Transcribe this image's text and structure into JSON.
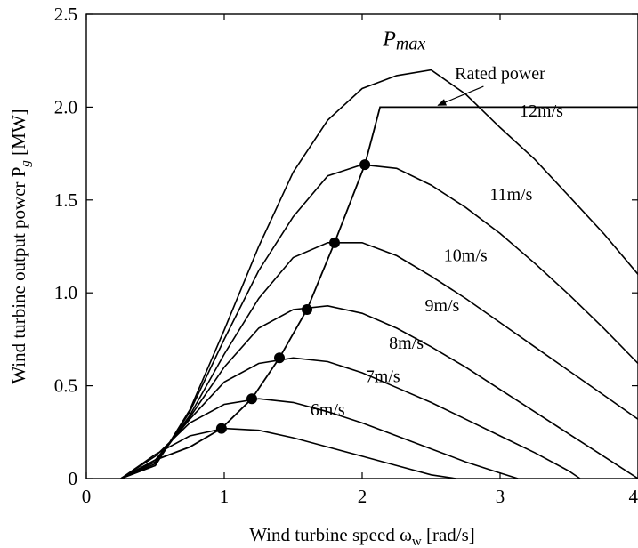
{
  "chart_data": {
    "type": "line",
    "xlabel": "Wind turbine speed ω",
    "xlabel_sub": "w",
    "xlabel_unit": " [rad/s]",
    "ylabel": "Wind turbine output power P",
    "ylabel_sub": "g",
    "ylabel_unit": " [MW]",
    "xlim": [
      0,
      4
    ],
    "ylim": [
      0,
      2.5
    ],
    "xticks": [
      "0",
      "1",
      "2",
      "3",
      "4"
    ],
    "yticks": [
      "0",
      "0.5",
      "1.0",
      "1.5",
      "2.0",
      "2.5"
    ],
    "xtick_values": [
      0,
      1,
      2,
      3,
      4
    ],
    "ytick_values": [
      0,
      0.5,
      1.0,
      1.5,
      2.0,
      2.5
    ],
    "grid": false,
    "series": [
      {
        "name": "6m/s",
        "label": "6m/s",
        "x": [
          0.25,
          0.5,
          0.75,
          1.0,
          1.25,
          1.5,
          1.75,
          2.0,
          2.25,
          2.5,
          2.68
        ],
        "y": [
          0.0,
          0.13,
          0.23,
          0.27,
          0.26,
          0.22,
          0.17,
          0.12,
          0.07,
          0.02,
          0.0
        ]
      },
      {
        "name": "7m/s",
        "label": "7m/s",
        "x": [
          0.25,
          0.5,
          0.75,
          1.0,
          1.25,
          1.5,
          1.75,
          2.0,
          2.25,
          2.5,
          2.75,
          3.0,
          3.13
        ],
        "y": [
          0.0,
          0.12,
          0.3,
          0.4,
          0.43,
          0.41,
          0.36,
          0.3,
          0.23,
          0.16,
          0.09,
          0.03,
          0.0
        ]
      },
      {
        "name": "8m/s",
        "label": "8m/s",
        "x": [
          0.25,
          0.5,
          0.75,
          1.0,
          1.25,
          1.5,
          1.75,
          2.0,
          2.25,
          2.5,
          2.75,
          3.0,
          3.25,
          3.5,
          3.58
        ],
        "y": [
          0.0,
          0.1,
          0.32,
          0.52,
          0.62,
          0.65,
          0.63,
          0.57,
          0.49,
          0.41,
          0.32,
          0.23,
          0.14,
          0.04,
          0.0
        ]
      },
      {
        "name": "9m/s",
        "label": "9m/s",
        "x": [
          0.25,
          0.5,
          0.75,
          1.0,
          1.25,
          1.5,
          1.75,
          2.0,
          2.25,
          2.5,
          2.75,
          3.0,
          3.25,
          3.5,
          3.75,
          4.0
        ],
        "y": [
          0.0,
          0.09,
          0.33,
          0.6,
          0.81,
          0.91,
          0.93,
          0.89,
          0.81,
          0.71,
          0.6,
          0.48,
          0.36,
          0.24,
          0.12,
          0.0
        ]
      },
      {
        "name": "10m/s",
        "label": "10m/s",
        "x": [
          0.25,
          0.5,
          0.75,
          1.0,
          1.25,
          1.5,
          1.75,
          2.0,
          2.25,
          2.5,
          2.75,
          3.0,
          3.25,
          3.5,
          3.75,
          4.0
        ],
        "y": [
          0.0,
          0.08,
          0.34,
          0.67,
          0.97,
          1.19,
          1.27,
          1.27,
          1.2,
          1.09,
          0.97,
          0.84,
          0.71,
          0.58,
          0.45,
          0.32
        ]
      },
      {
        "name": "11m/s",
        "label": "11m/s",
        "x": [
          0.25,
          0.5,
          0.75,
          1.0,
          1.25,
          1.5,
          1.75,
          2.0,
          2.25,
          2.5,
          2.75,
          3.0,
          3.25,
          3.5,
          3.75,
          4.0
        ],
        "y": [
          0.0,
          0.07,
          0.36,
          0.75,
          1.12,
          1.41,
          1.63,
          1.69,
          1.67,
          1.58,
          1.46,
          1.32,
          1.16,
          0.99,
          0.81,
          0.62
        ]
      },
      {
        "name": "12m/s",
        "label": "12m/s",
        "x": [
          0.25,
          0.5,
          0.75,
          1.0,
          1.25,
          1.5,
          1.75,
          2.0,
          2.25,
          2.5,
          2.75,
          3.0,
          3.25,
          3.5,
          3.75,
          4.0
        ],
        "y": [
          0.0,
          0.07,
          0.37,
          0.8,
          1.25,
          1.65,
          1.93,
          2.1,
          2.17,
          2.2,
          2.07,
          1.89,
          1.72,
          1.52,
          1.32,
          1.1
        ]
      }
    ],
    "mppt_curve": {
      "x": [
        0.25,
        0.5,
        0.75,
        0.98,
        1.2,
        1.4,
        1.6,
        1.8,
        2.02,
        2.13,
        4.0
      ],
      "y": [
        0.0,
        0.1,
        0.17,
        0.27,
        0.43,
        0.65,
        0.91,
        1.27,
        1.69,
        2.0,
        2.0
      ]
    },
    "mpp_points": {
      "x": [
        0.98,
        1.2,
        1.4,
        1.6,
        1.8,
        2.02
      ],
      "y": [
        0.27,
        0.43,
        0.65,
        0.91,
        1.27,
        1.69
      ]
    },
    "annotations": {
      "pmax_label": "P",
      "pmax_sub": "max",
      "pmax_at": [
        2.15,
        2.33
      ],
      "rated_label": "Rated power",
      "rated_label_at": [
        3.0,
        2.15
      ],
      "rated_arrow_to": [
        2.55,
        2.01
      ]
    }
  }
}
